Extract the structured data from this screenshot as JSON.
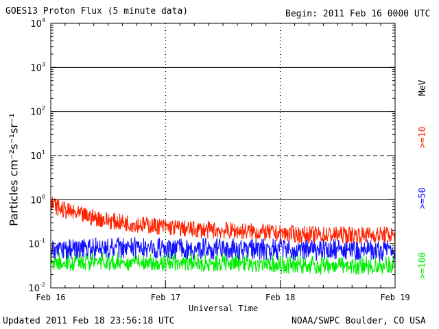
{
  "header": {
    "title": "GOES13 Proton Flux (5 minute data)",
    "begin": "Begin: 2011 Feb 16 0000 UTC"
  },
  "footer": {
    "updated": "Updated 2011 Feb 18 23:56:18 UTC",
    "credit": "NOAA/SWPC Boulder, CO USA"
  },
  "colors": {
    "ge10": "#ff2200",
    "ge50": "#1010ff",
    "ge100": "#00ee00",
    "grid": "#000000"
  },
  "chart_data": {
    "type": "line",
    "title": "GOES13 Proton Flux (5 minute data)",
    "xlabel": "Universal Time",
    "ylabel": "Particles cm⁻²s⁻¹sr⁻¹",
    "yscale": "log",
    "ylim": [
      0.01,
      10000
    ],
    "y_ticks": [
      {
        "value": 0.01,
        "base": "10",
        "exp": "-2"
      },
      {
        "value": 0.1,
        "base": "10",
        "exp": "-1"
      },
      {
        "value": 1,
        "base": "10",
        "exp": "0"
      },
      {
        "value": 10,
        "base": "10",
        "exp": "1"
      },
      {
        "value": 100,
        "base": "10",
        "exp": "2"
      },
      {
        "value": 1000,
        "base": "10",
        "exp": "3"
      },
      {
        "value": 10000,
        "base": "10",
        "exp": "4"
      }
    ],
    "x_ticks": [
      "Feb 16",
      "Feb 17",
      "Feb 18",
      "Feb 19"
    ],
    "x_range_days": [
      0,
      3
    ],
    "unit_label": "MeV",
    "threshold_lines": [
      {
        "value": 10,
        "style": "dashed"
      },
      {
        "value": 1,
        "style": "solid"
      },
      {
        "value": 100,
        "style": "solid"
      },
      {
        "value": 1000,
        "style": "solid"
      }
    ],
    "series": [
      {
        "name": ">=10",
        "color": "#ff2200",
        "x_days": [
          0,
          0.1,
          0.25,
          0.4,
          0.55,
          0.75,
          1.0,
          1.25,
          1.5,
          1.75,
          2.0,
          2.25,
          2.5,
          2.75,
          3.0
        ],
        "values": [
          0.8,
          0.6,
          0.45,
          0.38,
          0.32,
          0.28,
          0.24,
          0.21,
          0.2,
          0.19,
          0.17,
          0.16,
          0.16,
          0.16,
          0.16
        ]
      },
      {
        "name": ">=50",
        "color": "#1010ff",
        "x_days": [
          0,
          0.5,
          1.0,
          1.5,
          2.0,
          2.5,
          3.0
        ],
        "values": [
          0.07,
          0.075,
          0.075,
          0.07,
          0.07,
          0.068,
          0.066
        ]
      },
      {
        "name": ">=100",
        "color": "#00ee00",
        "x_days": [
          0,
          0.5,
          1.0,
          1.5,
          2.0,
          2.5,
          3.0
        ],
        "values": [
          0.035,
          0.035,
          0.035,
          0.033,
          0.03,
          0.028,
          0.028
        ]
      }
    ]
  }
}
